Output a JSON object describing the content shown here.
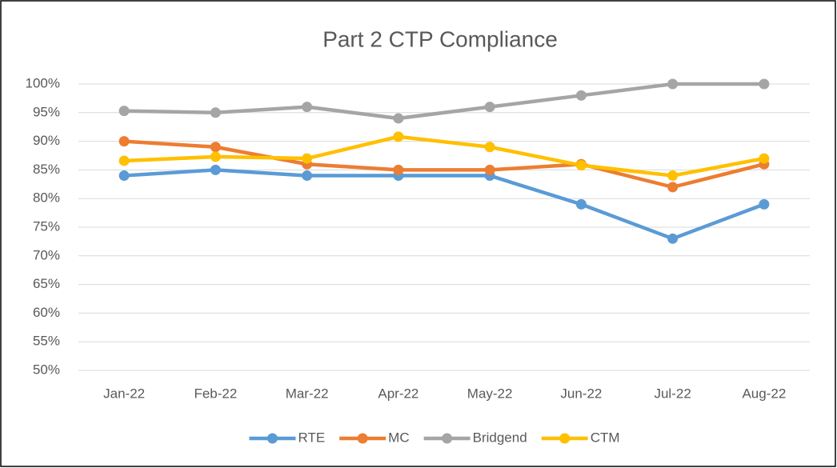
{
  "chart_data": {
    "type": "line",
    "title": "Part 2 CTP Compliance",
    "categories": [
      "Jan-22",
      "Feb-22",
      "Mar-22",
      "Apr-22",
      "May-22",
      "Jun-22",
      "Jul-22",
      "Aug-22"
    ],
    "series": [
      {
        "name": "RTE",
        "color": "#5b9bd5",
        "values": [
          84,
          85,
          84,
          84,
          84,
          79,
          73,
          79
        ]
      },
      {
        "name": "MC",
        "color": "#ed7d31",
        "values": [
          90,
          89,
          86,
          85,
          85,
          86,
          82,
          86
        ]
      },
      {
        "name": "Bridgend",
        "color": "#a5a5a5",
        "values": [
          95.3,
          95,
          96,
          94,
          96,
          98,
          100,
          100
        ]
      },
      {
        "name": "CTM",
        "color": "#ffc000",
        "values": [
          86.6,
          87.3,
          87,
          90.8,
          89,
          85.8,
          84,
          87
        ]
      }
    ],
    "ylim": [
      50,
      100
    ],
    "yticks": [
      {
        "value": 50,
        "label": "50%"
      },
      {
        "value": 55,
        "label": "55%"
      },
      {
        "value": 60,
        "label": "60%"
      },
      {
        "value": 65,
        "label": "65%"
      },
      {
        "value": 70,
        "label": "70%"
      },
      {
        "value": 75,
        "label": "75%"
      },
      {
        "value": 80,
        "label": "80%"
      },
      {
        "value": 85,
        "label": "85%"
      },
      {
        "value": 90,
        "label": "90%"
      },
      {
        "value": 95,
        "label": "95%"
      },
      {
        "value": 100,
        "label": "100%"
      }
    ],
    "grid": true,
    "legend": "bottom"
  }
}
